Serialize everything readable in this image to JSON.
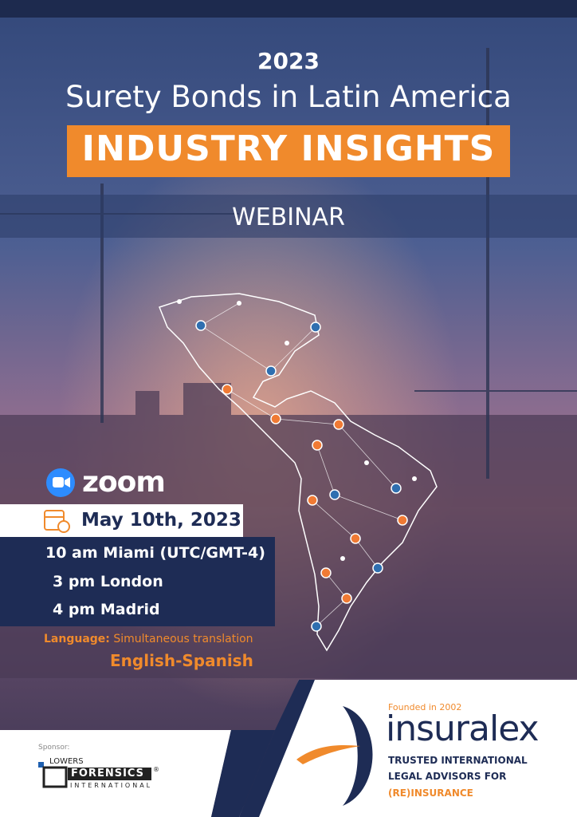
{
  "header": {
    "year": "2023",
    "title": "Surety Bonds in Latin America",
    "banner": "INDUSTRY INSIGHTS",
    "subtitle": "WEBINAR"
  },
  "platform": "zoom",
  "schedule": {
    "date": "May 10th, 2023",
    "times": [
      "10 am Miami (UTC/GMT-4)",
      "3 pm London",
      "4 pm Madrid"
    ]
  },
  "language": {
    "label": "Language:",
    "value": "Simultaneous translation",
    "pair": "English-Spanish"
  },
  "sponsor": {
    "label": "Sponsor:",
    "brand_top": "LOWERS",
    "brand_main": "FORENSICS",
    "mark": "®",
    "brand_bottom": "INTERNATIONAL"
  },
  "organizer": {
    "founded": "Founded in 2002",
    "name": "insuralex",
    "tagline": [
      "TRUSTED INTERNATIONAL",
      "LEGAL ADVISORS FOR",
      "(RE)INSURANCE"
    ]
  }
}
